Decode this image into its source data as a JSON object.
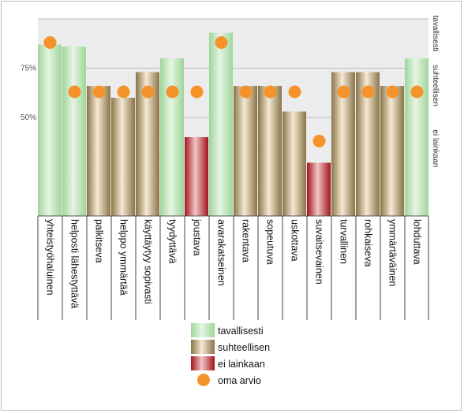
{
  "chart_data": {
    "type": "bar",
    "categories": [
      "yhteistyöhaluinen",
      "helposti lähestyttävä",
      "palkitseva",
      "helppo ymmärtää",
      "käyttäytyy sopivasti",
      "tyydyttävä",
      "joustava",
      "avarakatseinen",
      "rakentava",
      "sopeutuva",
      "uskottava",
      "suvaitsevainen",
      "turvallinen",
      "rohkaiseva",
      "ymmärtäväinen",
      "lohduttava"
    ],
    "values": [
      87,
      86,
      66,
      60,
      73,
      80,
      40,
      93,
      66,
      66,
      53,
      27,
      73,
      73,
      66,
      80
    ],
    "bar_group": [
      "tavallisesti",
      "tavallisesti",
      "suhteellisen",
      "suhteellisen",
      "suhteellisen",
      "tavallisesti",
      "ei lainkaan",
      "tavallisesti",
      "suhteellisen",
      "suhteellisen",
      "suhteellisen",
      "ei lainkaan",
      "suhteellisen",
      "suhteellisen",
      "suhteellisen",
      "tavallisesti"
    ],
    "series": [
      {
        "name": "oma arvio",
        "values": [
          88,
          63,
          63,
          63,
          63,
          63,
          63,
          88,
          63,
          63,
          63,
          38,
          63,
          63,
          63,
          63
        ]
      }
    ],
    "yticks": [
      {
        "value": 75,
        "label": "75%"
      },
      {
        "value": 50,
        "label": "50%"
      }
    ],
    "ylim": [
      0,
      100
    ],
    "right_labels": [
      {
        "label": "tavallisesti",
        "value": 91
      },
      {
        "label": "suhteellisen",
        "value": 66
      },
      {
        "label": "ei lainkaan",
        "value": 33
      }
    ],
    "legend": [
      {
        "label": "tavallisesti",
        "kind": "green"
      },
      {
        "label": "suhteellisen",
        "kind": "tan"
      },
      {
        "label": "ei lainkaan",
        "kind": "red"
      },
      {
        "label": "oma arvio",
        "kind": "dot"
      }
    ],
    "legend_position": "bottom-center",
    "grid": true,
    "colors": {
      "tavallisesti": [
        "#9fd59a",
        "#e6f5e3"
      ],
      "suhteellisen": [
        "#8a7449",
        "#f5ead3"
      ],
      "ei lainkaan": [
        "#a0141c",
        "#f2c6c6"
      ],
      "dot": "#f6922a",
      "plot_bg": "#ececec",
      "grid": "#bdbdbd"
    },
    "title": "",
    "xlabel": "",
    "ylabel": ""
  }
}
